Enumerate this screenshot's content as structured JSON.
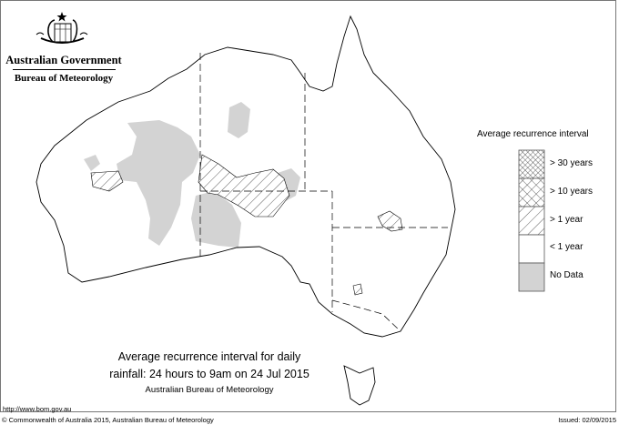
{
  "header": {
    "org": "Australian Government",
    "agency": "Bureau of Meteorology"
  },
  "legend": {
    "title": "Average recurrence interval",
    "items": [
      {
        "label": "> 30 years",
        "pattern": "fine-crosshatch"
      },
      {
        "label": "> 10 years",
        "pattern": "crosshatch"
      },
      {
        "label": "> 1 year",
        "pattern": "diagonal-hatch"
      },
      {
        "label": "< 1 year",
        "pattern": "none",
        "color": "#ffffff"
      },
      {
        "label": "No Data",
        "pattern": "solid",
        "color": "#d3d3d3"
      }
    ]
  },
  "caption": {
    "line1": "Average recurrence interval for daily",
    "line2": "rainfall: 24 hours to 9am on 24 Jul 2015",
    "source": "Australian Bureau of Meteorology"
  },
  "url": "http://www.bom.gov.au",
  "copyright": "© Commonwealth of Australia 2015, Australian Bureau of Meteorology",
  "issued": "Issued: 02/09/2015"
}
